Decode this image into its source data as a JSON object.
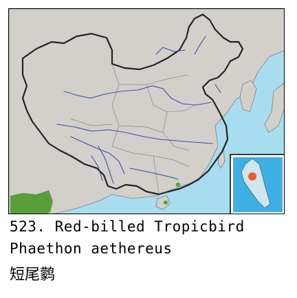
{
  "species": {
    "number_and_name": "523. Red-billed Tropicbird",
    "scientific_name": "Phaethon aethereus",
    "chinese_name": "短尾鹲"
  },
  "colors": {
    "sea": "#a8dcef",
    "land": "#d3d0cc",
    "border": "#222222",
    "river": "#3b4f9e",
    "range": "#5a9e3a",
    "record_dot": "#f05a28",
    "inset_sea": "#3fb0e3"
  }
}
